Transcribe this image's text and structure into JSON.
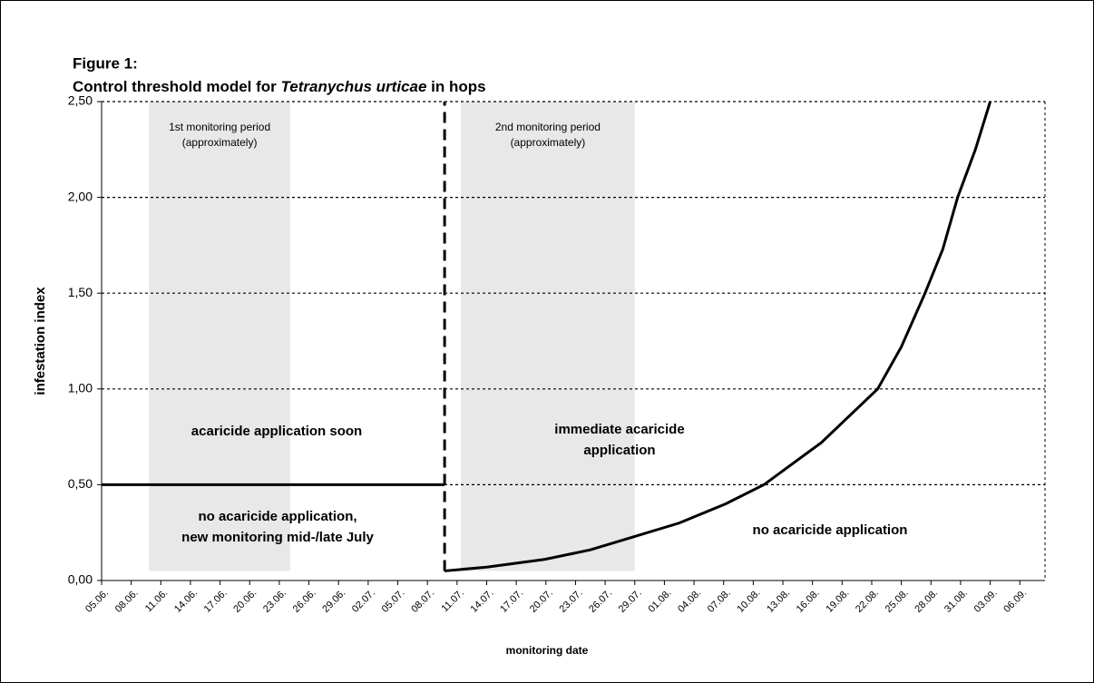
{
  "chart_data": {
    "type": "line",
    "figure_label": "Figure 1:",
    "title": [
      "Control threshold model for ",
      "Tetranychus urticae",
      " in hops"
    ],
    "x_label": "monitoring date",
    "y_label": "infestation index",
    "categories": [
      "05.06.",
      "08.06.",
      "11.06.",
      "14.06.",
      "17.06.",
      "20.06.",
      "23.06.",
      "26.06.",
      "29.06.",
      "02.07.",
      "05.07.",
      "08.07.",
      "11.07.",
      "14.07.",
      "17.07.",
      "20.07.",
      "23.07.",
      "26.07.",
      "29.07.",
      "01.08.",
      "04.08.",
      "07.08.",
      "10.08.",
      "13.08.",
      "16.08.",
      "19.08.",
      "22.08.",
      "25.08.",
      "28.08.",
      "31.08.",
      "03.09.",
      "06.09."
    ],
    "xlim": [
      0,
      31.85
    ],
    "ylim": [
      0,
      2.5
    ],
    "yticks": [
      {
        "value": 0,
        "label": "0,00"
      },
      {
        "value": 0.5,
        "label": "0,50"
      },
      {
        "value": 1,
        "label": "1,00"
      },
      {
        "value": 1.5,
        "label": "1,50"
      },
      {
        "value": 2,
        "label": "2,00"
      },
      {
        "value": 2.5,
        "label": "2,50"
      }
    ],
    "grid": true,
    "regions": [
      {
        "x": [
          1.6,
          6.37
        ],
        "y": [
          0.05,
          2.5
        ],
        "color": "#e8e8e8",
        "text": [
          "1st monitoring period",
          "(approximately)"
        ]
      },
      {
        "x": [
          12.13,
          18.0
        ],
        "y": [
          0.05,
          2.5
        ],
        "color": "#e8e8e8",
        "text": [
          "2nd monitoring period",
          "(approximately)"
        ]
      }
    ],
    "series": [
      {
        "x": [
          0,
          11.58
        ],
        "values": [
          0.5,
          0.5
        ],
        "color": "#000000",
        "dashed": false
      },
      {
        "x": [
          11.58,
          11.58
        ],
        "values": [
          0.05,
          2.5
        ],
        "color": "#000000",
        "dashed": true
      },
      {
        "x": [
          11.58,
          13.0,
          14.95,
          16.5,
          18.0,
          19.5,
          21.07,
          22.36,
          24.3,
          26.2,
          27.0,
          27.8,
          28.4,
          28.9,
          29.5,
          30.0
        ],
        "values": [
          0.05,
          0.07,
          0.11,
          0.16,
          0.23,
          0.3,
          0.4,
          0.5,
          0.72,
          1.0,
          1.22,
          1.5,
          1.73,
          2.0,
          2.25,
          2.5
        ],
        "color": "#000000",
        "dashed": false
      }
    ],
    "annotations": [
      [
        "acaricide application soon"
      ],
      [
        "immediate acaricide",
        "application"
      ],
      [
        "no acaricide application,",
        "new monitoring mid-/late July"
      ],
      [
        "no acaricide application"
      ]
    ]
  }
}
